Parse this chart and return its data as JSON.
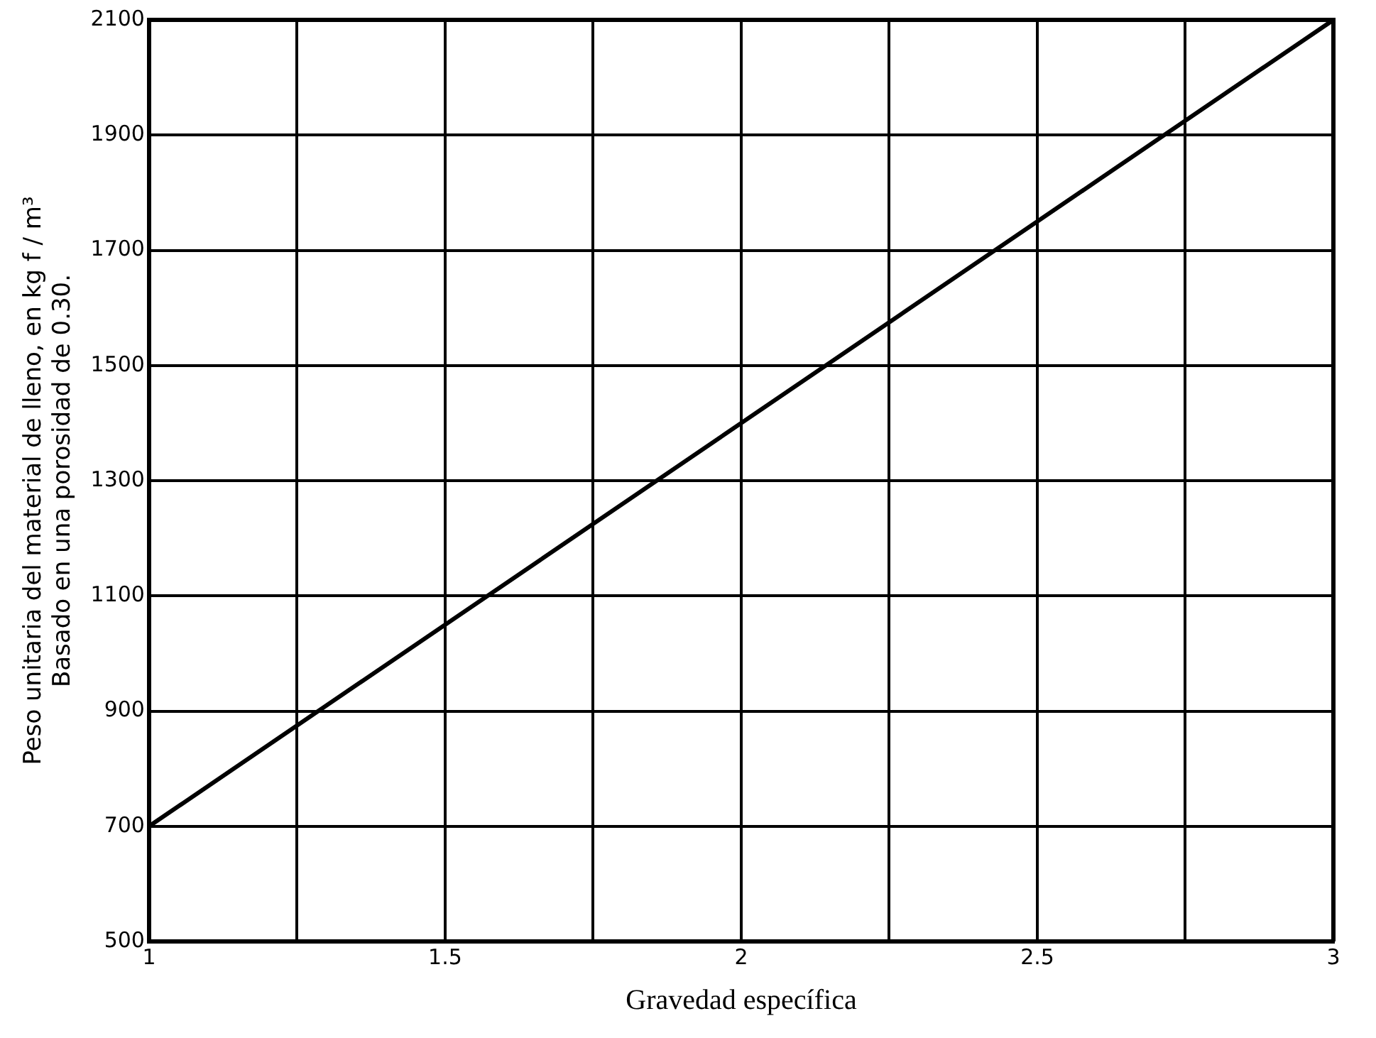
{
  "chart_data": {
    "type": "line",
    "xlabel": "Gravedad específica",
    "ylabel": "Peso unitaria del material de lleno, en kg f / m³\nBasado en una porosidad de 0.30.",
    "series": [
      {
        "color": "#000000",
        "x": [
          1,
          3
        ],
        "values": [
          700,
          2100
        ]
      }
    ],
    "xlim": [
      1,
      3
    ],
    "xticks": [
      1,
      {
        "value": 1.25,
        "label": null
      },
      1.5,
      {
        "value": 1.75,
        "label": null
      },
      2,
      {
        "value": 2.25,
        "label": null
      },
      2.5,
      {
        "value": 2.75,
        "label": null
      },
      3
    ],
    "ylim": [
      500,
      2100
    ],
    "yticks": [
      500,
      700,
      900,
      1100,
      1300,
      1500,
      1700,
      1900,
      2100
    ],
    "grid": true,
    "legend": false,
    "marker": "none",
    "line_style": "solid"
  }
}
